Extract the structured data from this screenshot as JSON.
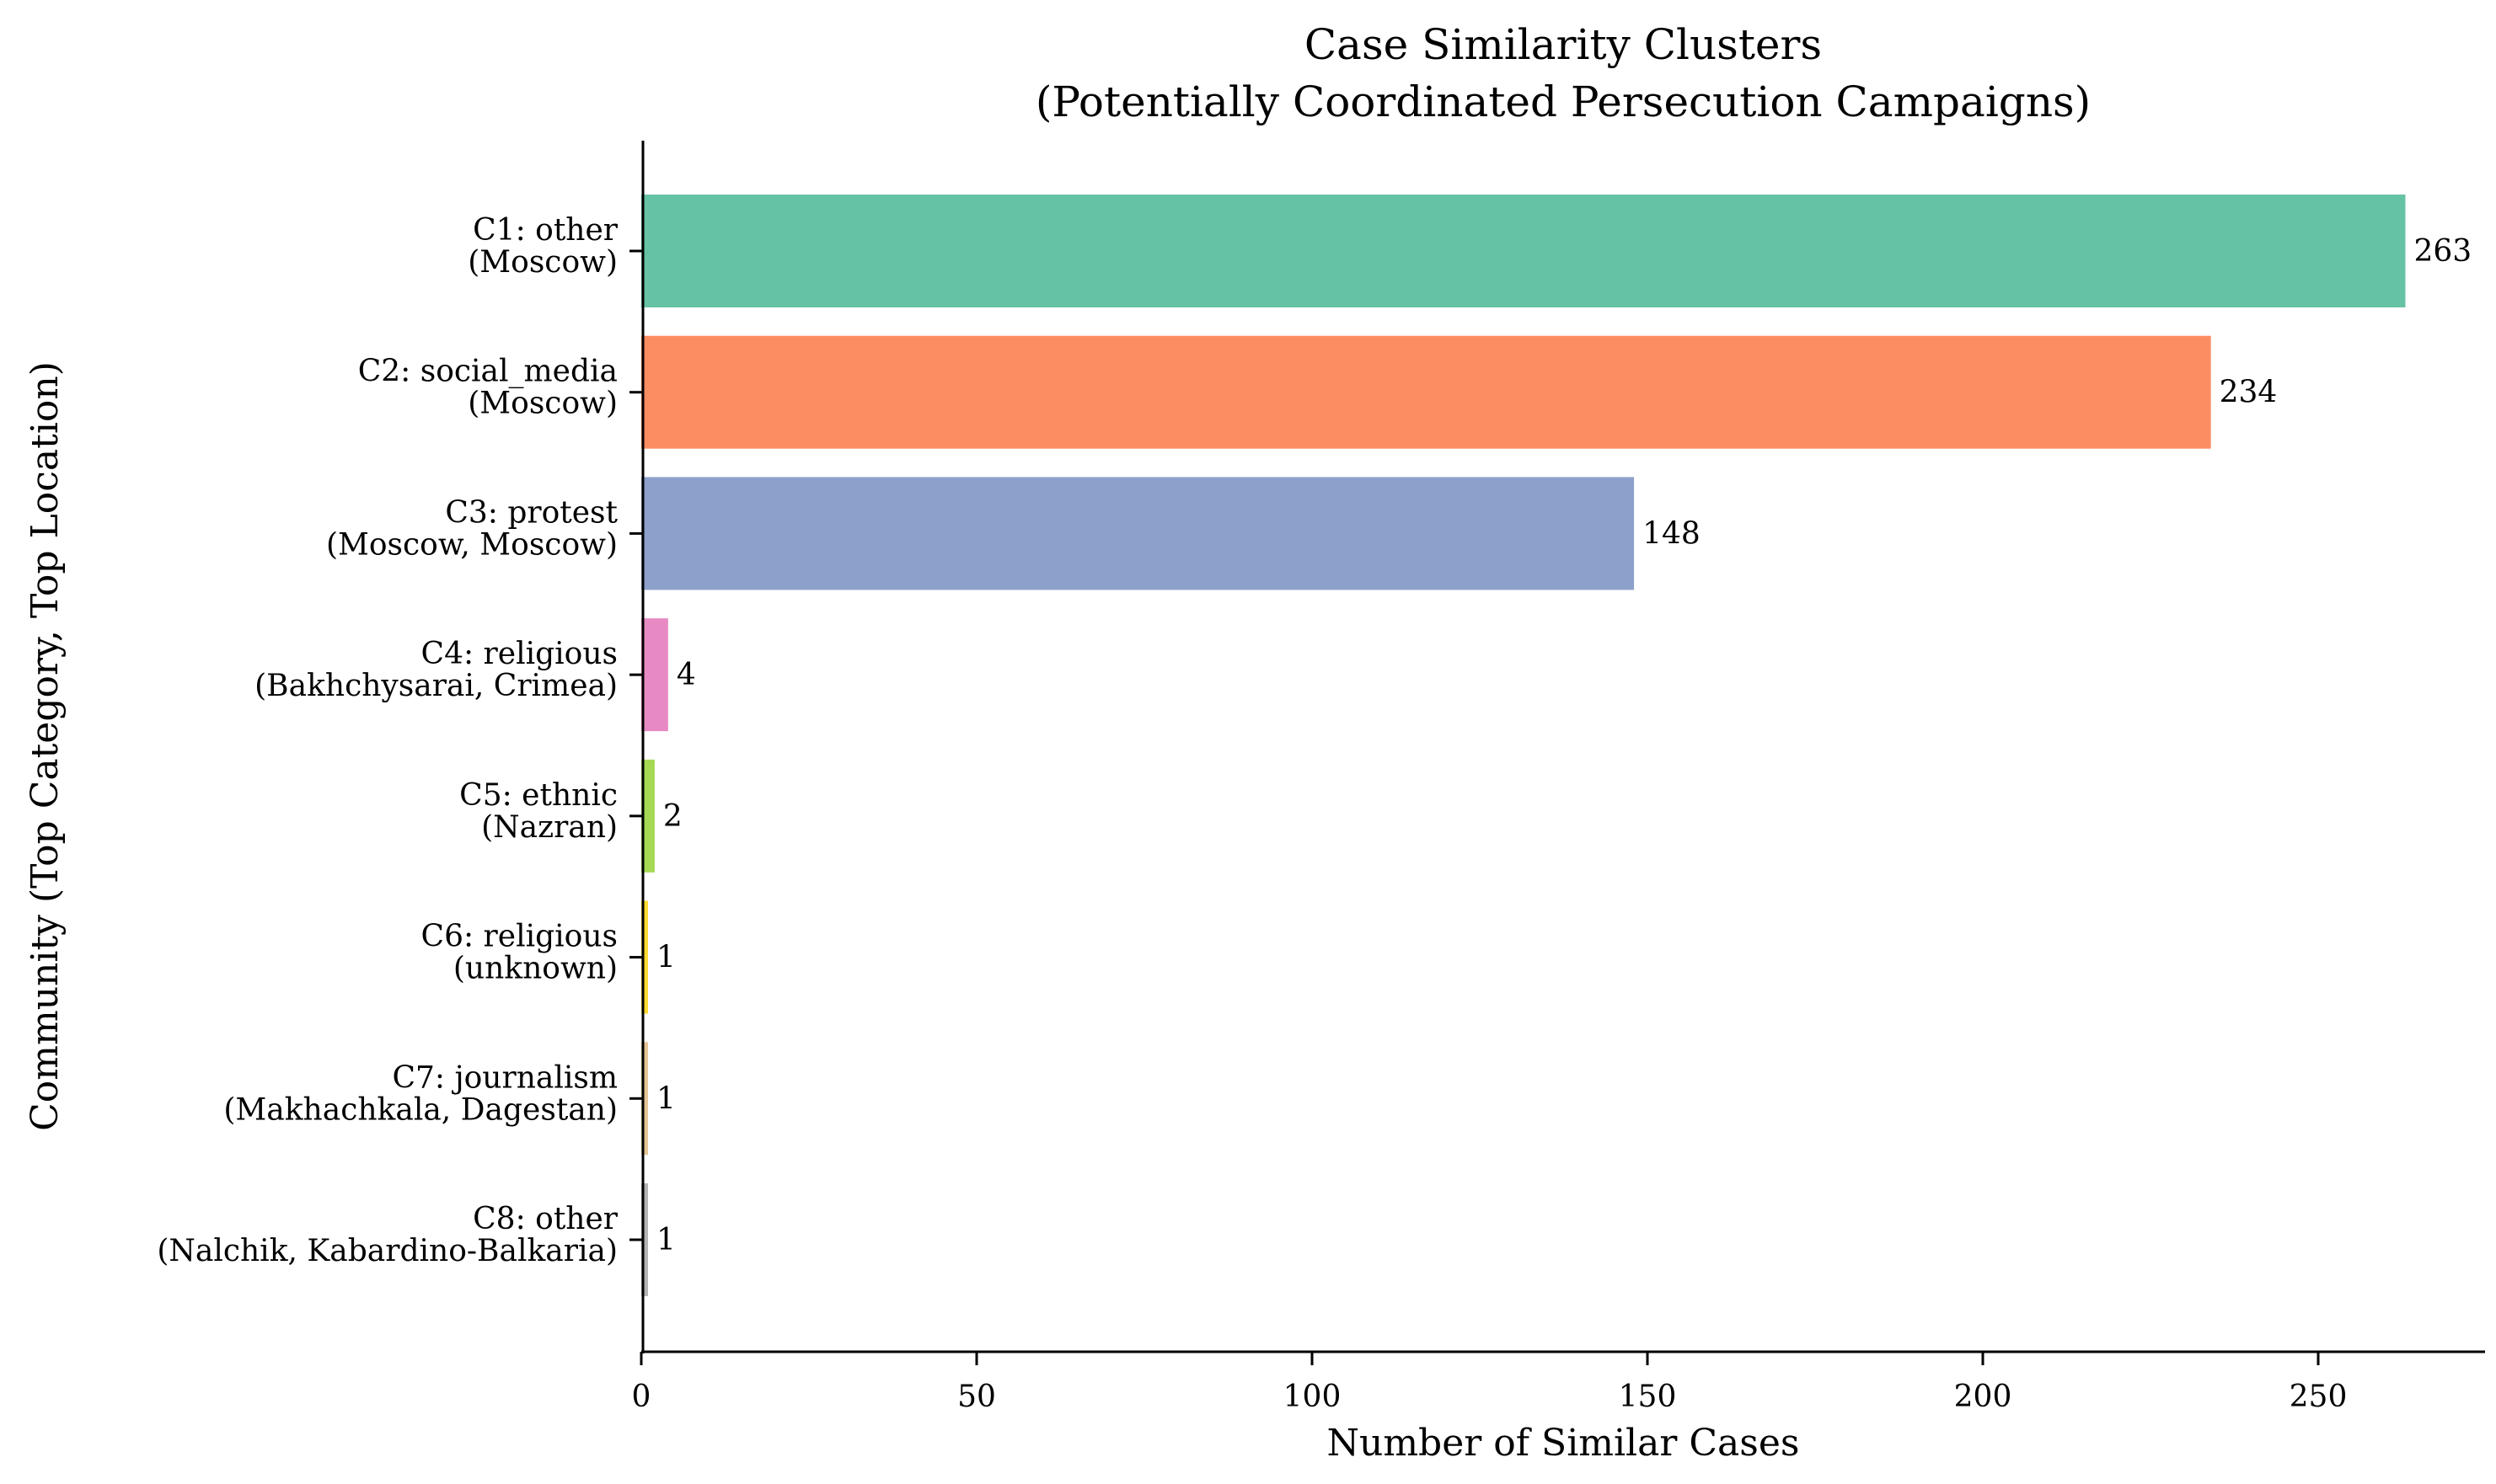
{
  "chart_data": {
    "type": "bar",
    "orientation": "horizontal",
    "title": "Case Similarity Clusters\n(Potentially Coordinated Persecution Campaigns)",
    "title_lines": [
      "Case Similarity Clusters",
      "(Potentially Coordinated Persecution Campaigns)"
    ],
    "xlabel": "Number of Similar Cases",
    "ylabel": "Community (Top Category, Top Location)",
    "xlim": [
      0,
      275
    ],
    "xticks": [
      0,
      50,
      100,
      150,
      200,
      250
    ],
    "grid": false,
    "categories": [
      [
        "C1: other",
        "(Moscow)"
      ],
      [
        "C2: social_media",
        "(Moscow)"
      ],
      [
        "C3: protest",
        "(Moscow, Moscow)"
      ],
      [
        "C4: religious",
        "(Bakhchysarai, Crimea)"
      ],
      [
        "C5: ethnic",
        "(Nazran)"
      ],
      [
        "C6: religious",
        "(unknown)"
      ],
      [
        "C7: journalism",
        "(Makhachkala, Dagestan)"
      ],
      [
        "C8: other",
        "(Nalchik, Kabardino-Balkaria)"
      ]
    ],
    "values": [
      263,
      234,
      148,
      4,
      2,
      1,
      1,
      1
    ],
    "colors": [
      "#66c2a5",
      "#fc8d62",
      "#8da0cb",
      "#e78ac3",
      "#a6d854",
      "#ffd92f",
      "#e5c494",
      "#b3b3b3"
    ],
    "data_labels": true
  }
}
